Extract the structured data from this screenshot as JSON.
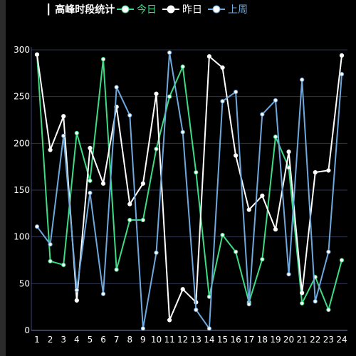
{
  "chart_data": {
    "type": "line",
    "title": "┃ 高峰时段统计",
    "x": [
      "1",
      "2",
      "3",
      "4",
      "5",
      "6",
      "7",
      "8",
      "9",
      "10",
      "11",
      "12",
      "13",
      "14",
      "15",
      "16",
      "17",
      "18",
      "19",
      "20",
      "21",
      "22",
      "23",
      "24"
    ],
    "ylim": [
      0,
      300
    ],
    "yticks": [
      0,
      50,
      100,
      150,
      200,
      250,
      300
    ],
    "grid": true,
    "legend_position": "top",
    "series": [
      {
        "name": "今日",
        "color": "#3ddc84",
        "legend_color": "#3ddc84",
        "values": [
          295,
          74,
          70,
          211,
          160,
          290,
          65,
          118,
          118,
          194,
          250,
          282,
          169,
          36,
          102,
          84,
          30,
          76,
          207,
          174,
          29,
          57,
          22,
          75
        ]
      },
      {
        "name": "昨日",
        "color": "#ffffff",
        "legend_color": "#ffffff",
        "values": [
          295,
          193,
          229,
          32,
          195,
          157,
          239,
          135,
          157,
          253,
          11,
          44,
          30,
          293,
          281,
          187,
          129,
          144,
          108,
          191,
          40,
          169,
          171,
          294
        ]
      },
      {
        "name": "上周",
        "color": "#6fa8dc",
        "legend_color": "#6fa8dc",
        "values": [
          111,
          92,
          208,
          43,
          147,
          39,
          260,
          230,
          2,
          83,
          297,
          212,
          22,
          2,
          245,
          255,
          28,
          231,
          246,
          60,
          268,
          31,
          84,
          274
        ]
      }
    ]
  }
}
